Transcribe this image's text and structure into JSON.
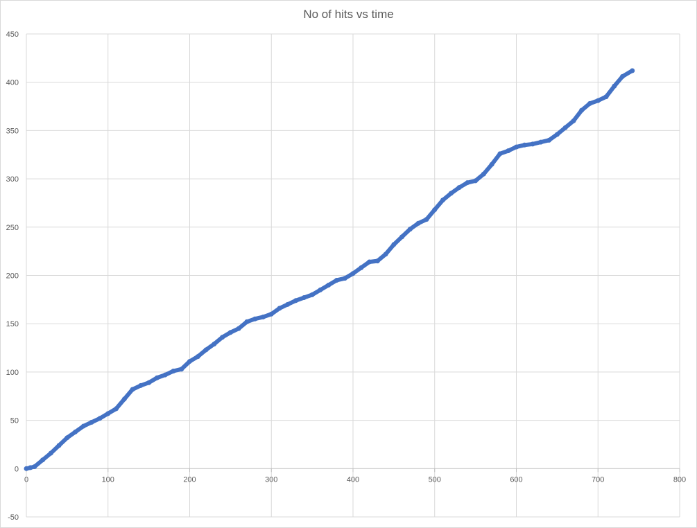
{
  "chart_data": {
    "type": "scatter",
    "title": "No of hits vs time",
    "xlabel": "",
    "ylabel": "",
    "xlim": [
      0,
      800
    ],
    "ylim": [
      -50,
      450
    ],
    "xticks": [
      0,
      100,
      200,
      300,
      400,
      500,
      600,
      700,
      800
    ],
    "yticks": [
      -50,
      0,
      50,
      100,
      150,
      200,
      250,
      300,
      350,
      400,
      450
    ],
    "grid": true,
    "legend": "none",
    "series_color": "#4472c4",
    "series": [
      {
        "x": [
          0,
          5,
          10,
          20,
          30,
          40,
          50,
          60,
          70,
          80,
          90,
          100,
          110,
          120,
          130,
          140,
          150,
          160,
          170,
          180,
          190,
          200,
          210,
          220,
          230,
          240,
          250,
          260,
          270,
          280,
          290,
          300,
          310,
          320,
          330,
          340,
          350,
          360,
          370,
          380,
          390,
          400,
          410,
          420,
          430,
          440,
          450,
          460,
          470,
          480,
          490,
          500,
          510,
          520,
          530,
          540,
          550,
          560,
          570,
          580,
          590,
          600,
          610,
          620,
          630,
          640,
          650,
          660,
          670,
          680,
          690,
          700,
          710,
          720,
          730,
          742
        ],
        "y": [
          0,
          1,
          2,
          9,
          16,
          24,
          32,
          38,
          44,
          48,
          52,
          57,
          62,
          72,
          82,
          86,
          89,
          94,
          97,
          101,
          103,
          111,
          116,
          123,
          129,
          136,
          141,
          145,
          152,
          155,
          157,
          160,
          166,
          170,
          174,
          177,
          180,
          185,
          190,
          195,
          197,
          202,
          208,
          214,
          215,
          222,
          232,
          240,
          248,
          254,
          258,
          268,
          278,
          285,
          291,
          296,
          298,
          305,
          315,
          326,
          329,
          333,
          335,
          336,
          338,
          340,
          346,
          353,
          360,
          371,
          378,
          381,
          385,
          396,
          406,
          412
        ]
      }
    ]
  }
}
